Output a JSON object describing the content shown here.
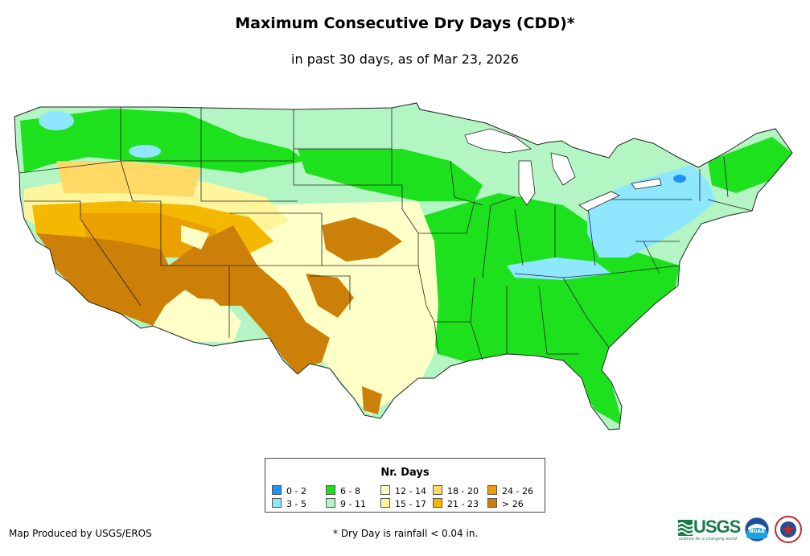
{
  "title": "Maximum Consecutive Dry Days (CDD)*",
  "subtitle": "in past 30 days, as of Mar 23, 2026",
  "legend": {
    "title": "Nr. Days",
    "items": [
      {
        "label": "0 - 2",
        "color": "#1e90ff"
      },
      {
        "label": "3 - 5",
        "color": "#8ee6ff"
      },
      {
        "label": "6 - 8",
        "color": "#1de11d"
      },
      {
        "label": "9 - 11",
        "color": "#b4f5c4"
      },
      {
        "label": "12 - 14",
        "color": "#ffffc8"
      },
      {
        "label": "15 - 17",
        "color": "#fff59c"
      },
      {
        "label": "18 - 20",
        "color": "#ffd966"
      },
      {
        "label": "21 - 23",
        "color": "#f5b800"
      },
      {
        "label": "24 - 26",
        "color": "#eba000"
      },
      {
        "label": "> 26",
        "color": "#cd8008"
      }
    ]
  },
  "credit": "Map Produced by USGS/EROS",
  "footnote": "* Dry Day is rainfall < 0.04 in.",
  "logos": {
    "usgs_text": "USGS",
    "usgs_tagline": "science for a changing world",
    "noaa_text": "NOAA"
  },
  "icons": [
    "usgs-logo-icon",
    "noaa-logo-icon",
    "nws-logo-icon"
  ]
}
